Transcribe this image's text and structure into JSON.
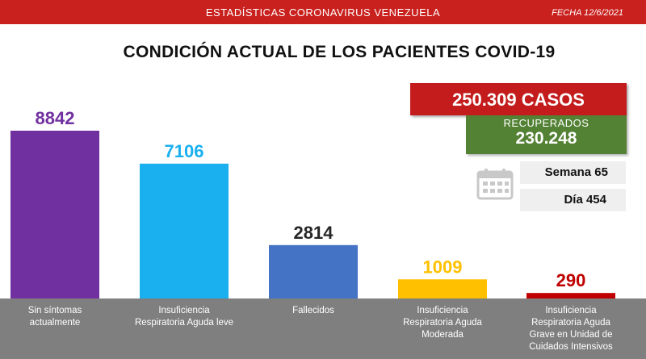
{
  "header": {
    "title": "ESTADÍSTICAS CORONAVIRUS VENEZUELA",
    "date": "FECHA 12/6/2021"
  },
  "main_title": "CONDICIÓN ACTUAL DE LOS PACIENTES COVID-19",
  "summary": {
    "cases": "250.309 CASOS",
    "recovered_label": "RECUPERADOS",
    "recovered_value": "230.248",
    "week": "Semana 65",
    "day": "Día 454"
  },
  "icons": {
    "calendar": "calendar-icon"
  },
  "colors": {
    "header_red": "#c9211e",
    "cases_red": "#c41c1c",
    "recovered_green": "#548235",
    "axis_band": "#7f7f7f"
  },
  "chart_data": {
    "type": "bar",
    "title": "CONDICIÓN ACTUAL DE LOS PACIENTES COVID-19",
    "categories": [
      [
        "Sin síntomas",
        "actualmente"
      ],
      [
        "Insuficiencia",
        "Respiratoria Aguda leve"
      ],
      [
        "Fallecidos"
      ],
      [
        "Insuficiencia",
        "Respiratoria Aguda",
        "Moderada"
      ],
      [
        "Insuficiencia",
        "Respiratoria Aguda",
        "Grave en Unidad de",
        "Cuidados Intensivos"
      ]
    ],
    "values": [
      8842,
      7106,
      2814,
      1009,
      290
    ],
    "value_labels": [
      "8842",
      "7106",
      "2814",
      "1009",
      "290"
    ],
    "bar_colors": [
      "#7030a0",
      "#1ab0ef",
      "#4472c4",
      "#ffc000",
      "#c00000"
    ],
    "label_colors": [
      "#7030a0",
      "#1ab0ef",
      "#262626",
      "#ffc000",
      "#c00000"
    ],
    "ylim": [
      0,
      8842
    ],
    "grid": false,
    "legend": "none"
  }
}
